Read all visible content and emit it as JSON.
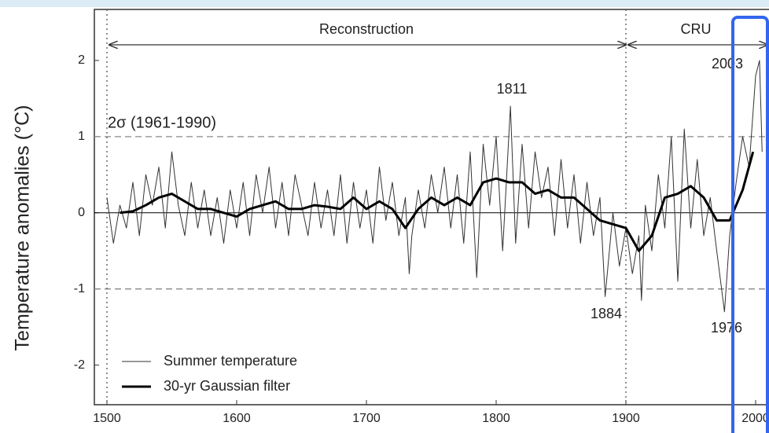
{
  "chart_data": {
    "type": "line",
    "y_label": "Temperature anomalies (°C)",
    "xlim": [
      1490.3,
      2010.3
    ],
    "ylim": [
      -2.52,
      2.67
    ],
    "xticks": [
      1500,
      1600,
      1700,
      1800,
      1900,
      2000
    ],
    "yticks": [
      -2,
      -1,
      0,
      1,
      2
    ],
    "reference_lines": [
      1,
      -1
    ],
    "period_lines": [
      1500,
      1900
    ],
    "legend": "lower left",
    "annotations": [
      {
        "text": "Reconstruction",
        "from": 1500,
        "to": 1900
      },
      {
        "text": "CRU",
        "from": 1900,
        "to": 2010
      },
      {
        "text": "2σ (1961-1990)"
      },
      {
        "text": "1811"
      },
      {
        "text": "1884"
      },
      {
        "text": "1976"
      },
      {
        "text": "2003"
      }
    ],
    "series": [
      {
        "name": "Summer temperature",
        "color": "#333333",
        "width": 1,
        "x": [
          1500,
          1505,
          1510,
          1515,
          1520,
          1525,
          1530,
          1535,
          1540,
          1545,
          1550,
          1555,
          1560,
          1565,
          1570,
          1575,
          1580,
          1585,
          1590,
          1595,
          1600,
          1605,
          1610,
          1615,
          1620,
          1625,
          1630,
          1635,
          1640,
          1645,
          1650,
          1655,
          1660,
          1665,
          1670,
          1675,
          1680,
          1685,
          1690,
          1695,
          1700,
          1705,
          1710,
          1715,
          1720,
          1725,
          1730,
          1733,
          1735,
          1740,
          1745,
          1750,
          1755,
          1760,
          1765,
          1770,
          1775,
          1780,
          1785,
          1790,
          1795,
          1800,
          1805,
          1811,
          1815,
          1820,
          1825,
          1830,
          1835,
          1840,
          1845,
          1850,
          1855,
          1860,
          1865,
          1870,
          1875,
          1880,
          1884,
          1890,
          1895,
          1900,
          1905,
          1910,
          1912,
          1915,
          1920,
          1925,
          1930,
          1935,
          1940,
          1945,
          1950,
          1955,
          1960,
          1965,
          1970,
          1976,
          1980,
          1985,
          1990,
          1995,
          2000,
          2003,
          2005
        ],
        "values": [
          0.2,
          -0.4,
          0.1,
          -0.2,
          0.4,
          -0.3,
          0.5,
          0.1,
          0.6,
          -0.2,
          0.8,
          0.1,
          -0.3,
          0.4,
          -0.2,
          0.3,
          -0.3,
          0.2,
          -0.4,
          0.3,
          -0.2,
          0.4,
          -0.3,
          0.5,
          0.0,
          0.6,
          -0.2,
          0.4,
          -0.3,
          0.5,
          0.1,
          -0.3,
          0.4,
          -0.2,
          0.3,
          -0.3,
          0.5,
          -0.4,
          0.4,
          -0.2,
          0.3,
          -0.4,
          0.6,
          -0.1,
          0.4,
          -0.3,
          0.2,
          -0.8,
          -0.3,
          0.3,
          -0.2,
          0.5,
          0.0,
          0.6,
          -0.2,
          0.5,
          -0.4,
          0.8,
          -0.85,
          0.9,
          0.1,
          1.0,
          -0.5,
          1.4,
          -0.4,
          0.9,
          -0.2,
          0.8,
          0.2,
          0.6,
          -0.3,
          0.7,
          -0.2,
          0.5,
          -0.4,
          0.4,
          -0.3,
          0.2,
          -1.1,
          0.0,
          -0.7,
          -0.2,
          -0.8,
          -0.3,
          -1.15,
          0.1,
          -0.5,
          0.5,
          -0.2,
          1.0,
          -0.9,
          1.1,
          -0.2,
          0.7,
          -0.3,
          0.2,
          -0.5,
          -1.3,
          -0.3,
          0.4,
          1.0,
          0.6,
          1.8,
          2.0,
          0.8
        ]
      },
      {
        "name": "30-yr Gaussian filter",
        "color": "#000000",
        "width": 3,
        "x": [
          1510,
          1520,
          1530,
          1540,
          1550,
          1560,
          1570,
          1580,
          1590,
          1600,
          1610,
          1620,
          1630,
          1640,
          1650,
          1660,
          1670,
          1680,
          1690,
          1700,
          1710,
          1720,
          1730,
          1740,
          1750,
          1760,
          1770,
          1780,
          1790,
          1800,
          1810,
          1820,
          1830,
          1840,
          1850,
          1860,
          1870,
          1880,
          1890,
          1900,
          1910,
          1920,
          1930,
          1940,
          1950,
          1960,
          1970,
          1980,
          1990,
          1998
        ],
        "values": [
          0.0,
          0.02,
          0.1,
          0.2,
          0.25,
          0.15,
          0.05,
          0.05,
          0.0,
          -0.05,
          0.05,
          0.1,
          0.15,
          0.05,
          0.05,
          0.1,
          0.08,
          0.05,
          0.2,
          0.05,
          0.15,
          0.05,
          -0.2,
          0.05,
          0.2,
          0.1,
          0.2,
          0.1,
          0.4,
          0.45,
          0.4,
          0.4,
          0.25,
          0.3,
          0.2,
          0.2,
          0.05,
          -0.1,
          -0.15,
          -0.2,
          -0.5,
          -0.3,
          0.2,
          0.25,
          0.35,
          0.2,
          -0.1,
          -0.1,
          0.3,
          0.8
        ]
      }
    ]
  }
}
